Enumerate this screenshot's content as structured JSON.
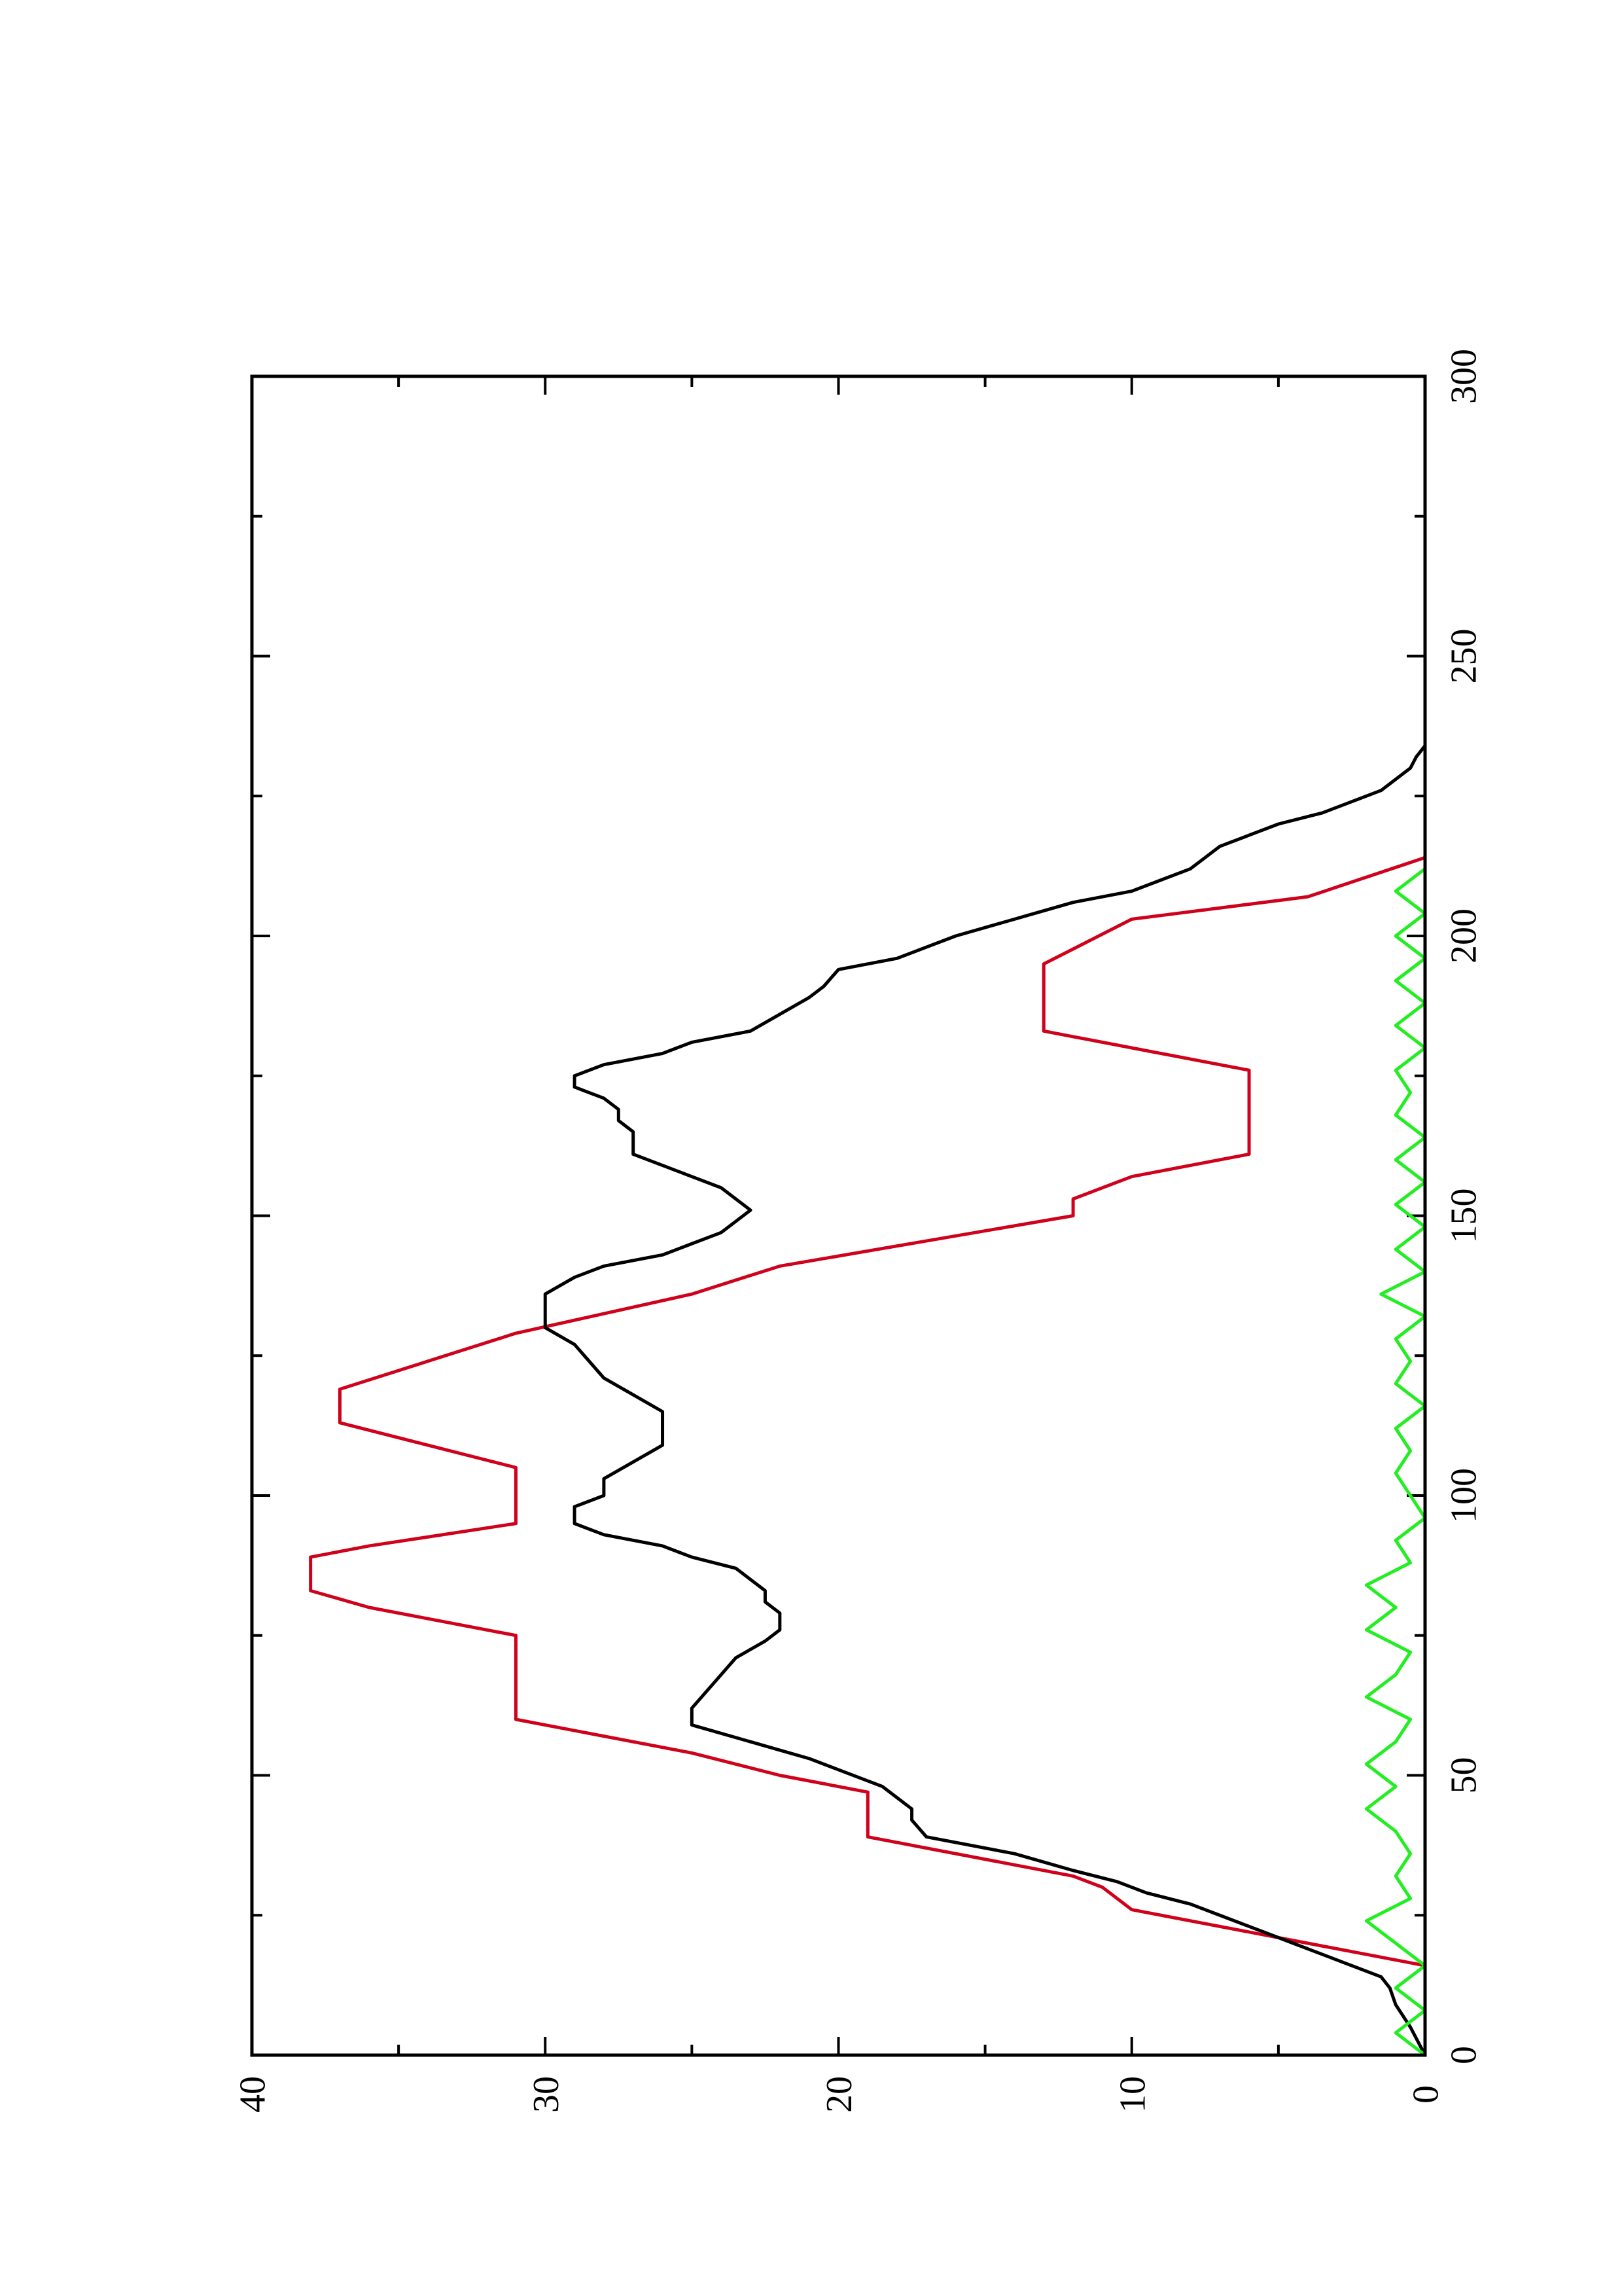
{
  "chart_data": {
    "type": "line",
    "orientation": "rotated-90-ccw",
    "title": "",
    "xlabel": "",
    "ylabel": "",
    "xlim": [
      0,
      300
    ],
    "ylim": [
      0,
      40
    ],
    "xticks": [
      0,
      50,
      100,
      150,
      200,
      250,
      300
    ],
    "yticks": [
      0,
      10,
      20,
      30,
      40
    ],
    "grid": false,
    "series": [
      {
        "color": "#d0021b",
        "points": [
          [
            16,
            0
          ],
          [
            20,
            4
          ],
          [
            26,
            10
          ],
          [
            30,
            11
          ],
          [
            32,
            12
          ],
          [
            39,
            19
          ],
          [
            47,
            19
          ],
          [
            50,
            22
          ],
          [
            54,
            25
          ],
          [
            60,
            31
          ],
          [
            75,
            31
          ],
          [
            80,
            36
          ],
          [
            83,
            38
          ],
          [
            89,
            38
          ],
          [
            91,
            36
          ],
          [
            95,
            31
          ],
          [
            105,
            31
          ],
          [
            109,
            34
          ],
          [
            113,
            37
          ],
          [
            119,
            37
          ],
          [
            124,
            34
          ],
          [
            129,
            31
          ],
          [
            136,
            25
          ],
          [
            141,
            22
          ],
          [
            150,
            12
          ],
          [
            153,
            12
          ],
          [
            157,
            10
          ],
          [
            161,
            6
          ],
          [
            176,
            6
          ],
          [
            183,
            13
          ],
          [
            195,
            13
          ],
          [
            203,
            10
          ],
          [
            207,
            4
          ],
          [
            214,
            0
          ]
        ]
      },
      {
        "color": "#000000",
        "points": [
          [
            0,
            0
          ],
          [
            5,
            0.5
          ],
          [
            9,
            1
          ],
          [
            12,
            1.2
          ],
          [
            14,
            1.5
          ],
          [
            17,
            3
          ],
          [
            20,
            4.5
          ],
          [
            23,
            6
          ],
          [
            25,
            7
          ],
          [
            27,
            8
          ],
          [
            29,
            9.5
          ],
          [
            31,
            10.5
          ],
          [
            33,
            12
          ],
          [
            36,
            14
          ],
          [
            39,
            17
          ],
          [
            42,
            17.5
          ],
          [
            44,
            17.5
          ],
          [
            46,
            18
          ],
          [
            48,
            18.5
          ],
          [
            51,
            20
          ],
          [
            53,
            21
          ],
          [
            56,
            23
          ],
          [
            59,
            25
          ],
          [
            62,
            25
          ],
          [
            65,
            24.5
          ],
          [
            68,
            24
          ],
          [
            71,
            23.5
          ],
          [
            74,
            22.5
          ],
          [
            76,
            22
          ],
          [
            79,
            22
          ],
          [
            81,
            22.5
          ],
          [
            83,
            22.5
          ],
          [
            85,
            23
          ],
          [
            87,
            23.5
          ],
          [
            89,
            25
          ],
          [
            91,
            26
          ],
          [
            93,
            28
          ],
          [
            95,
            29
          ],
          [
            98,
            29
          ],
          [
            100,
            28
          ],
          [
            103,
            28
          ],
          [
            106,
            27
          ],
          [
            109,
            26
          ],
          [
            112,
            26
          ],
          [
            115,
            26
          ],
          [
            118,
            27
          ],
          [
            121,
            28
          ],
          [
            124,
            28.5
          ],
          [
            127,
            29
          ],
          [
            130,
            30
          ],
          [
            133,
            30
          ],
          [
            136,
            30
          ],
          [
            139,
            29
          ],
          [
            141,
            28
          ],
          [
            143,
            26
          ],
          [
            145,
            25
          ],
          [
            147,
            24
          ],
          [
            149,
            23.5
          ],
          [
            151,
            23
          ],
          [
            153,
            23.5
          ],
          [
            155,
            24
          ],
          [
            157,
            25
          ],
          [
            159,
            26
          ],
          [
            161,
            27
          ],
          [
            163,
            27
          ],
          [
            165,
            27
          ],
          [
            167,
            27.5
          ],
          [
            169,
            27.5
          ],
          [
            171,
            28
          ],
          [
            173,
            29
          ],
          [
            175,
            29
          ],
          [
            177,
            28
          ],
          [
            179,
            26
          ],
          [
            181,
            25
          ],
          [
            183,
            23
          ],
          [
            186,
            22
          ],
          [
            189,
            21
          ],
          [
            191,
            20.5
          ],
          [
            194,
            20
          ],
          [
            196,
            18
          ],
          [
            198,
            17
          ],
          [
            200,
            16
          ],
          [
            203,
            14
          ],
          [
            206,
            12
          ],
          [
            208,
            10
          ],
          [
            210,
            9
          ],
          [
            212,
            8
          ],
          [
            214,
            7.5
          ],
          [
            216,
            7
          ],
          [
            218,
            6
          ],
          [
            220,
            5
          ],
          [
            222,
            3.5
          ],
          [
            224,
            2.5
          ],
          [
            226,
            1.5
          ],
          [
            228,
            1
          ],
          [
            230,
            0.5
          ],
          [
            232,
            0.3
          ],
          [
            234,
            0
          ]
        ]
      },
      {
        "color": "#22ee22",
        "points": [
          [
            0,
            0
          ],
          [
            4,
            1
          ],
          [
            8,
            0
          ],
          [
            12,
            1
          ],
          [
            16,
            0
          ],
          [
            20,
            1
          ],
          [
            24,
            2
          ],
          [
            28,
            0.5
          ],
          [
            32,
            1
          ],
          [
            36,
            0.5
          ],
          [
            40,
            1
          ],
          [
            44,
            2
          ],
          [
            48,
            1
          ],
          [
            52,
            2
          ],
          [
            56,
            1
          ],
          [
            60,
            0.5
          ],
          [
            64,
            2
          ],
          [
            68,
            1
          ],
          [
            72,
            0.5
          ],
          [
            76,
            2
          ],
          [
            80,
            1
          ],
          [
            84,
            2
          ],
          [
            88,
            0.5
          ],
          [
            92,
            1
          ],
          [
            96,
            0
          ],
          [
            100,
            0.5
          ],
          [
            104,
            1
          ],
          [
            108,
            0.5
          ],
          [
            112,
            1
          ],
          [
            116,
            0
          ],
          [
            120,
            1
          ],
          [
            124,
            0.5
          ],
          [
            128,
            1
          ],
          [
            132,
            0
          ],
          [
            136,
            1.5
          ],
          [
            140,
            0
          ],
          [
            144,
            1
          ],
          [
            148,
            0
          ],
          [
            152,
            1
          ],
          [
            156,
            0
          ],
          [
            160,
            1
          ],
          [
            164,
            0
          ],
          [
            168,
            1
          ],
          [
            172,
            0.5
          ],
          [
            176,
            1
          ],
          [
            180,
            0
          ],
          [
            184,
            1
          ],
          [
            188,
            0
          ],
          [
            192,
            1
          ],
          [
            196,
            0
          ],
          [
            200,
            1
          ],
          [
            204,
            0
          ],
          [
            208,
            1
          ],
          [
            212,
            0
          ],
          [
            214,
            0
          ]
        ]
      }
    ]
  }
}
